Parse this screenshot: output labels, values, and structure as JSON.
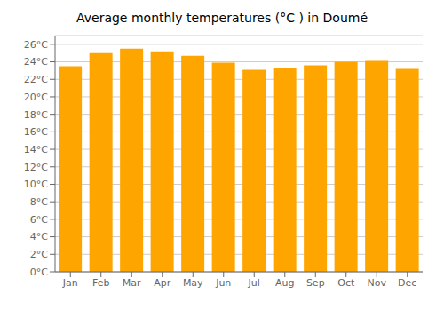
{
  "chart_data": {
    "type": "bar",
    "title": "Average monthly temperatures (°C ) in Doumé",
    "categories": [
      "Jan",
      "Feb",
      "Mar",
      "Apr",
      "May",
      "Jun",
      "Jul",
      "Aug",
      "Sep",
      "Oct",
      "Nov",
      "Dec"
    ],
    "values": [
      23.5,
      25.0,
      25.5,
      25.2,
      24.7,
      23.9,
      23.1,
      23.3,
      23.6,
      24.0,
      24.1,
      23.2
    ],
    "color": "#FFA500",
    "ylim": [
      0,
      27
    ],
    "yticks": [
      {
        "value": 0,
        "label": "0°C"
      },
      {
        "value": 2,
        "label": "2°C"
      },
      {
        "value": 4,
        "label": "4°C"
      },
      {
        "value": 6,
        "label": "6°C"
      },
      {
        "value": 8,
        "label": "8°C"
      },
      {
        "value": 10,
        "label": "10°C"
      },
      {
        "value": 12,
        "label": "12°C"
      },
      {
        "value": 14,
        "label": "14°C"
      },
      {
        "value": 16,
        "label": "16°C"
      },
      {
        "value": 18,
        "label": "18°C"
      },
      {
        "value": 20,
        "label": "20°C"
      },
      {
        "value": 22,
        "label": "22°C"
      },
      {
        "value": 24,
        "label": "24°C"
      },
      {
        "value": 26,
        "label": "26°C"
      }
    ],
    "grid": true
  }
}
